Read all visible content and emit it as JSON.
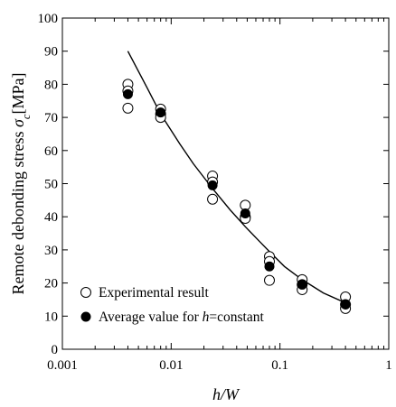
{
  "chart_data": {
    "type": "scatter",
    "x_scale": "log",
    "xlim": [
      0.001,
      1
    ],
    "ylim": [
      0,
      100
    ],
    "grid": false,
    "legend_placement": "bottom-left",
    "xlabel_parts": [
      {
        "text": "h/W",
        "italic": true
      }
    ],
    "ylabel_parts": [
      {
        "text": "Remote debonding stress ",
        "italic": false
      },
      {
        "text": "σ",
        "italic": true
      },
      {
        "text": "c",
        "italic": true,
        "sub": true
      },
      {
        "text": "[MPa]",
        "italic": false
      }
    ],
    "x_ticks": [
      {
        "value": 0.001,
        "label": "0.001"
      },
      {
        "value": 0.01,
        "label": "0.01"
      },
      {
        "value": 0.1,
        "label": "0.1"
      },
      {
        "value": 1,
        "label": "1"
      }
    ],
    "y_ticks": [
      {
        "value": 0,
        "label": "0"
      },
      {
        "value": 10,
        "label": "10"
      },
      {
        "value": 20,
        "label": "20"
      },
      {
        "value": 30,
        "label": "30"
      },
      {
        "value": 40,
        "label": "40"
      },
      {
        "value": 50,
        "label": "50"
      },
      {
        "value": 60,
        "label": "60"
      },
      {
        "value": 70,
        "label": "70"
      },
      {
        "value": 80,
        "label": "80"
      },
      {
        "value": 90,
        "label": "90"
      },
      {
        "value": 100,
        "label": "100"
      }
    ],
    "series": [
      {
        "name_parts": [
          {
            "text": "Experimental result",
            "italic": false
          }
        ],
        "marker": "open-circle",
        "points": [
          {
            "x": 0.004,
            "y": 80
          },
          {
            "x": 0.004,
            "y": 78
          },
          {
            "x": 0.004,
            "y": 72.8
          },
          {
            "x": 0.008,
            "y": 72.5
          },
          {
            "x": 0.008,
            "y": 71
          },
          {
            "x": 0.008,
            "y": 70
          },
          {
            "x": 0.024,
            "y": 52.3
          },
          {
            "x": 0.024,
            "y": 50.5
          },
          {
            "x": 0.024,
            "y": 45.3
          },
          {
            "x": 0.048,
            "y": 43.5
          },
          {
            "x": 0.048,
            "y": 40
          },
          {
            "x": 0.048,
            "y": 39.5
          },
          {
            "x": 0.08,
            "y": 28
          },
          {
            "x": 0.08,
            "y": 26.5
          },
          {
            "x": 0.08,
            "y": 20.8
          },
          {
            "x": 0.16,
            "y": 21
          },
          {
            "x": 0.16,
            "y": 19.5
          },
          {
            "x": 0.16,
            "y": 18
          },
          {
            "x": 0.4,
            "y": 15.8
          },
          {
            "x": 0.4,
            "y": 13.5
          },
          {
            "x": 0.4,
            "y": 12.3
          }
        ]
      },
      {
        "name_parts": [
          {
            "text": "Average value for ",
            "italic": false
          },
          {
            "text": "h",
            "italic": true
          },
          {
            "text": "=constant",
            "italic": false
          }
        ],
        "marker": "filled-circle",
        "points": [
          {
            "x": 0.004,
            "y": 77
          },
          {
            "x": 0.008,
            "y": 71.5
          },
          {
            "x": 0.024,
            "y": 49.5
          },
          {
            "x": 0.048,
            "y": 41
          },
          {
            "x": 0.08,
            "y": 25
          },
          {
            "x": 0.16,
            "y": 19.5
          },
          {
            "x": 0.4,
            "y": 13.5
          }
        ]
      }
    ],
    "fit_curve": {
      "style": "solid-line",
      "points": [
        {
          "x": 0.004,
          "y": 90
        },
        {
          "x": 0.006,
          "y": 79
        },
        {
          "x": 0.008,
          "y": 71
        },
        {
          "x": 0.012,
          "y": 62
        },
        {
          "x": 0.016,
          "y": 56
        },
        {
          "x": 0.024,
          "y": 48.5
        },
        {
          "x": 0.035,
          "y": 42
        },
        {
          "x": 0.048,
          "y": 37
        },
        {
          "x": 0.065,
          "y": 32.5
        },
        {
          "x": 0.08,
          "y": 29.5
        },
        {
          "x": 0.11,
          "y": 25
        },
        {
          "x": 0.16,
          "y": 21
        },
        {
          "x": 0.25,
          "y": 17
        },
        {
          "x": 0.4,
          "y": 14
        }
      ]
    }
  }
}
